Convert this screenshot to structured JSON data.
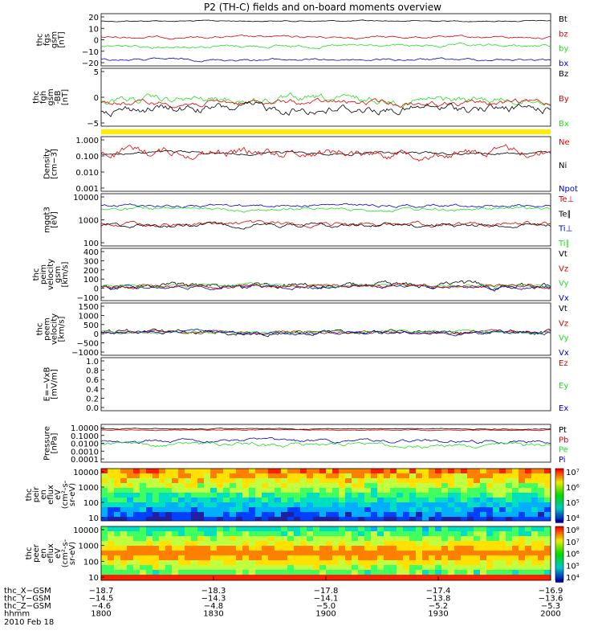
{
  "title": "P2 (TH-C) fields and on-board moments overview",
  "colors": {
    "black": "#000000",
    "red": "#dd0000",
    "green": "#22dd22",
    "blue": "#0000cc",
    "yellow": "#ffee00"
  },
  "chart_data": {
    "type": "line",
    "x_ticks": [
      "1800",
      "1830",
      "1900",
      "1930",
      "2000"
    ],
    "panels": [
      {
        "id": "fgs",
        "ylabel": [
          "thc",
          "fgs",
          "gsm",
          "[nT]"
        ],
        "yticks": [
          "20",
          "10",
          "0",
          "−10",
          "−20"
        ],
        "series": [
          {
            "name": "Bt",
            "color": "#000000"
          },
          {
            "name": "bz",
            "color": "#dd0000"
          },
          {
            "name": "by",
            "color": "#22dd22"
          },
          {
            "name": "bx",
            "color": "#0000cc"
          }
        ]
      },
      {
        "id": "fgh",
        "ylabel": [
          "thc",
          "fgh",
          "gsm",
          "-BB",
          "[nT]"
        ],
        "yticks": [
          "5",
          "0",
          "−5"
        ],
        "series": [
          {
            "name": "Bz",
            "color": "#000000"
          },
          {
            "name": "By",
            "color": "#dd0000"
          },
          {
            "name": "Bx",
            "color": "#22dd22"
          }
        ]
      },
      {
        "id": "density",
        "ylabel": [
          "Density",
          "[cm−3]"
        ],
        "yticks": [
          "1.000",
          "0.100",
          "0.010",
          "0.001"
        ],
        "series": [
          {
            "name": "Ne",
            "color": "#dd0000"
          },
          {
            "name": "Ni",
            "color": "#000000"
          },
          {
            "name": "Npot",
            "color": "#0000cc"
          }
        ]
      },
      {
        "id": "temp",
        "ylabel": [
          "mgqt3",
          "[eV]"
        ],
        "yticks": [
          "10000",
          "1000",
          "100"
        ],
        "series": [
          {
            "name": "Te⊥",
            "color": "#dd0000"
          },
          {
            "name": "Te∥",
            "color": "#000000"
          },
          {
            "name": "Ti⊥",
            "color": "#0000cc"
          },
          {
            "name": "Ti∥",
            "color": "#22dd22"
          }
        ]
      },
      {
        "id": "peim",
        "ylabel": [
          "thc",
          "peim",
          "velocity",
          "gsm",
          "[km/s]"
        ],
        "yticks": [
          "400",
          "300",
          "200",
          "100",
          "0",
          "−100"
        ],
        "series": [
          {
            "name": "Vt",
            "color": "#000000"
          },
          {
            "name": "Vz",
            "color": "#dd0000"
          },
          {
            "name": "Vy",
            "color": "#22dd22"
          },
          {
            "name": "Vx",
            "color": "#0000cc"
          }
        ]
      },
      {
        "id": "peem",
        "ylabel": [
          "thc",
          "peem",
          "velocity",
          "[km/s]"
        ],
        "yticks": [
          "1500",
          "1000",
          "500",
          "0",
          "−500",
          "−1000"
        ],
        "series": [
          {
            "name": "Vt",
            "color": "#000000"
          },
          {
            "name": "Vz",
            "color": "#dd0000"
          },
          {
            "name": "Vy",
            "color": "#22dd22"
          },
          {
            "name": "Vx",
            "color": "#0000cc"
          }
        ]
      },
      {
        "id": "efield",
        "ylabel": [
          "E=−VxB",
          "[mV/m]"
        ],
        "yticks": [
          "1.0",
          "0.8",
          "0.6",
          "0.4",
          "0.2",
          "0.0"
        ],
        "series": [
          {
            "name": "Ez",
            "color": "#dd0000"
          },
          {
            "name": "Ey",
            "color": "#22dd22"
          },
          {
            "name": "Ex",
            "color": "#0000cc"
          }
        ]
      },
      {
        "id": "pressure",
        "ylabel": [
          "Pressure",
          "[nPa]"
        ],
        "yticks": [
          "1.0000",
          "0.1000",
          "0.0100",
          "0.0010",
          "0.0001"
        ],
        "series": [
          {
            "name": "Pt",
            "color": "#000000"
          },
          {
            "name": "Pb",
            "color": "#dd0000"
          },
          {
            "name": "Pe",
            "color": "#22dd22"
          },
          {
            "name": "Pi",
            "color": "#0000cc"
          }
        ]
      },
      {
        "id": "peir",
        "ylabel": [
          "thc",
          "peir",
          "en",
          "eflux",
          "eV",
          "(cm²-s-",
          "sr-eV)"
        ],
        "yticks": [
          "10000",
          "1000",
          "100",
          "10"
        ],
        "colorbar": [
          "10⁷",
          "10⁶",
          "10⁵",
          "10⁴"
        ]
      },
      {
        "id": "peer",
        "ylabel": [
          "thc",
          "peer",
          "en",
          "eflux",
          "eV",
          "(cm²-s-",
          "sr-eV)"
        ],
        "yticks": [
          "10000",
          "1000",
          "100",
          "10"
        ],
        "colorbar": [
          "10⁸",
          "10⁷",
          "10⁶",
          "10⁵",
          "10⁴"
        ]
      }
    ],
    "ephemeris": {
      "rows": [
        {
          "label": "thc_X−GSM",
          "values": [
            "−18.7",
            "−18.3",
            "−17.8",
            "−17.4",
            "−16.9"
          ]
        },
        {
          "label": "thc_Y−GSM",
          "values": [
            "−14.5",
            "−14.3",
            "−14.1",
            "−13.8",
            "−13.6"
          ]
        },
        {
          "label": "thc_Z−GSM",
          "values": [
            "−4.6",
            "−4.8",
            "−5.0",
            "−5.2",
            "−5.3"
          ]
        },
        {
          "label": "hhmm",
          "values": [
            "1800",
            "1830",
            "1900",
            "1930",
            "2000"
          ]
        }
      ],
      "date": "2010 Feb 18"
    }
  }
}
